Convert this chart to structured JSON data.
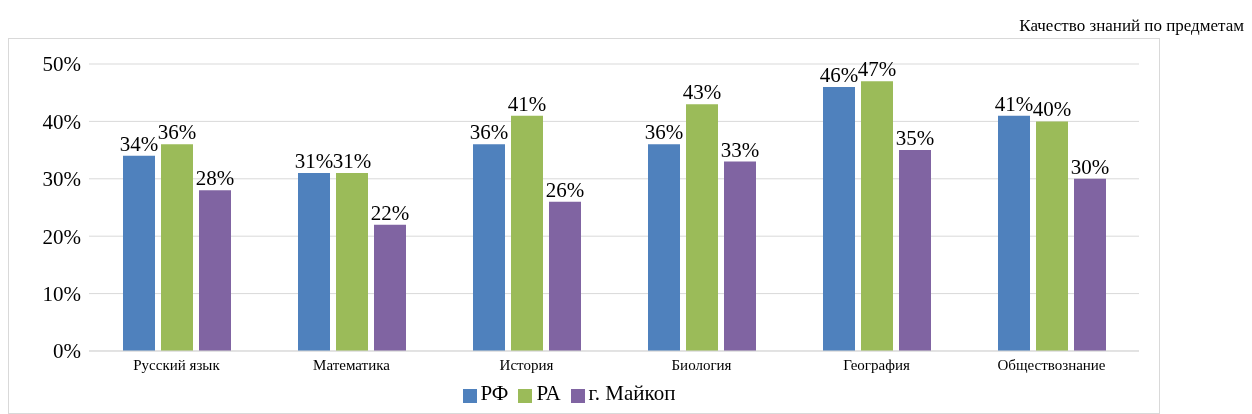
{
  "chart_data": {
    "type": "bar",
    "title": "Качество знаний по предметам",
    "categories": [
      "Русский язык",
      "Математика",
      "История",
      "Биология",
      "География",
      "Обществознание"
    ],
    "series": [
      {
        "name": "РФ",
        "color": "#4f81bd",
        "values": [
          34,
          31,
          36,
          36,
          46,
          41
        ],
        "value_labels": [
          "34%",
          "31%",
          "36%",
          "36%",
          "46%",
          "41%"
        ]
      },
      {
        "name": "РА",
        "color": "#9bbb59",
        "values": [
          36,
          31,
          41,
          43,
          47,
          40
        ],
        "value_labels": [
          "36%",
          "31%",
          "41%",
          "43%",
          "47%",
          "40%"
        ]
      },
      {
        "name": "г. Майкоп",
        "color": "#8064a2",
        "values": [
          28,
          22,
          26,
          33,
          35,
          30
        ],
        "value_labels": [
          "28%",
          "22%",
          "26%",
          "33%",
          "35%",
          "30%"
        ]
      }
    ],
    "ylim": [
      0,
      50
    ],
    "yticks": [
      {
        "value": 0,
        "label": "0%"
      },
      {
        "value": 10,
        "label": "10%"
      },
      {
        "value": 20,
        "label": "20%"
      },
      {
        "value": 30,
        "label": "30%"
      },
      {
        "value": 40,
        "label": "40%"
      },
      {
        "value": 50,
        "label": "50%"
      }
    ],
    "grid": "y",
    "legend": "bottom"
  }
}
